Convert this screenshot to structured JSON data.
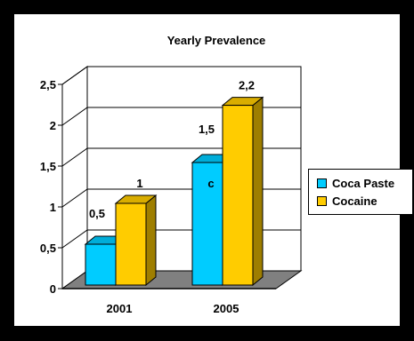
{
  "chart_data": {
    "type": "bar",
    "title": "Yearly Prevalence",
    "categories": [
      "2001",
      "2005"
    ],
    "series": [
      {
        "name": "Coca Paste",
        "values": [
          0.5,
          1.5
        ],
        "labels": [
          "0,5",
          "c"
        ],
        "color": "#00CCFF"
      },
      {
        "name": "Cocaine",
        "values": [
          1,
          2.2
        ],
        "labels": [
          "1",
          "2,2"
        ],
        "color": "#FFCC00"
      }
    ],
    "extra_labels": [
      {
        "category": "2005",
        "text": "1,5"
      }
    ],
    "ylim": [
      0,
      2.5
    ],
    "yticks": [
      0,
      0.5,
      1,
      1.5,
      2,
      2.5
    ],
    "ytick_labels": [
      "0",
      "0,5",
      "1",
      "1,5",
      "2",
      "2,5"
    ],
    "xlabel": "",
    "ylabel": "",
    "grid": true,
    "legend": "right",
    "floor_color": "#808080"
  }
}
